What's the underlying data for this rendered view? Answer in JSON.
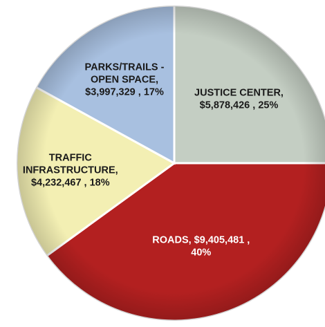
{
  "chart_data": {
    "type": "pie",
    "title": "",
    "slices": [
      {
        "label": "JUSTICE CENTER",
        "value": 5878426,
        "percent": 25,
        "label_lines": [
          "JUSTICE CENTER,",
          "$5,878,426 , 25%"
        ],
        "color": "#c4cec3",
        "text_color": "#1a1a1a"
      },
      {
        "label": "ROADS",
        "value": 9405481,
        "percent": 40,
        "label_lines": [
          "ROADS,  $9,405,481 ,",
          "40%"
        ],
        "color": "#b32020",
        "text_color": "#ffffff"
      },
      {
        "label": "TRAFFIC INFRASTRUCTURE",
        "value": 4232467,
        "percent": 18,
        "label_lines": [
          "TRAFFIC",
          "INFRASTRUCTURE,",
          "$4,232,467 , 18%"
        ],
        "color": "#f3efb3",
        "text_color": "#1a1a1a"
      },
      {
        "label": "PARKS/TRAILS - OPEN SPACE",
        "value": 3997329,
        "percent": 17,
        "label_lines": [
          "PARKS/TRAILS -",
          "OPEN SPACE,",
          "$3,997,329 , 17%"
        ],
        "color": "#a8c0e0",
        "text_color": "#1a1a1a"
      }
    ]
  }
}
